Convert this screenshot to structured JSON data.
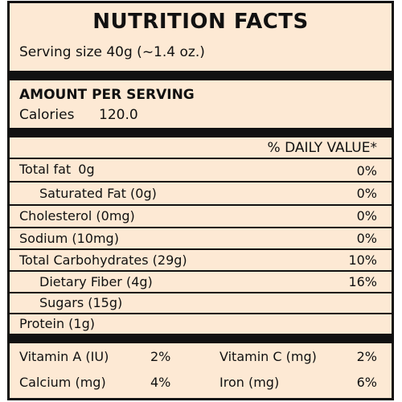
{
  "title": "NUTRITION FACTS",
  "serving_size": "Serving size 40g (~1.4 oz.)",
  "amount_per_serving": "AMOUNT PER SERVING",
  "calories": {
    "label": "Calories",
    "value": "120.0"
  },
  "daily_value_header": "% DAILY VALUE*",
  "nutrients": [
    {
      "label": "Total fat",
      "amount": "0g",
      "dv": "0%"
    },
    {
      "label": "Saturated Fat (0g)",
      "dv": "0%"
    },
    {
      "label": "Cholesterol (0mg)",
      "dv": "0%"
    },
    {
      "label": "Sodium (10mg)",
      "dv": "0%"
    },
    {
      "label": "Total Carbohydrates (29g)",
      "dv": "10%"
    },
    {
      "label": "Dietary Fiber (4g)",
      "dv": "16%"
    },
    {
      "label": "Sugars (15g)"
    },
    {
      "label": "Protein (1g)"
    }
  ],
  "vitamins": [
    {
      "label": "Vitamin A (IU)",
      "value": "2%"
    },
    {
      "label": "Vitamin C (mg)",
      "value": "2%"
    },
    {
      "label": "Calcium (mg)",
      "value": "4%"
    },
    {
      "label": "Iron (mg)",
      "value": "6%"
    }
  ],
  "colors": {
    "background": "#fde9d4",
    "ink": "#111111"
  }
}
